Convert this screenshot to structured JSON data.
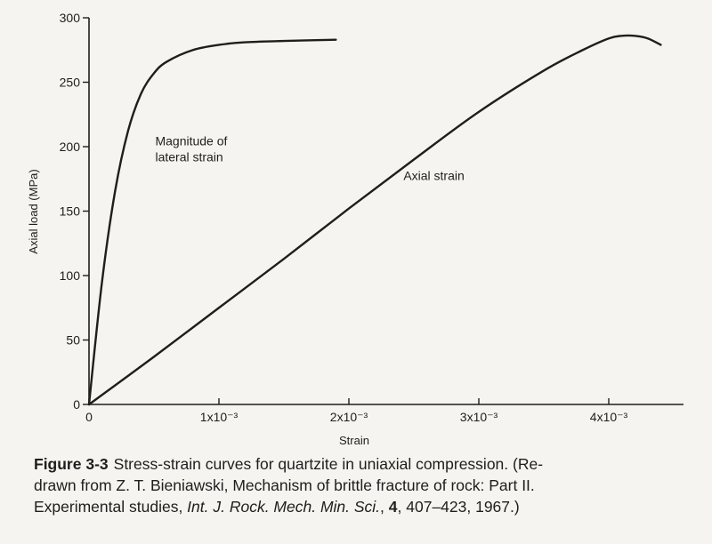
{
  "chart_data": {
    "type": "line",
    "xlabel": "Strain",
    "ylabel": "Axial load (MPa)",
    "xlim": [
      0,
      0.0045
    ],
    "ylim": [
      0,
      300
    ],
    "x_ticks": [
      {
        "value": 0,
        "label": "0"
      },
      {
        "value": 0.001,
        "label": "1x10⁻³"
      },
      {
        "value": 0.002,
        "label": "2x10⁻³"
      },
      {
        "value": 0.003,
        "label": "3x10⁻³"
      },
      {
        "value": 0.004,
        "label": "4x10⁻³"
      }
    ],
    "y_ticks": [
      0,
      50,
      100,
      150,
      200,
      250,
      300
    ],
    "grid": false,
    "series": [
      {
        "name": "Magnitude of lateral strain",
        "x": [
          0,
          0.0001,
          0.0002,
          0.0003,
          0.0004,
          0.0005,
          0.0006,
          0.0008,
          0.001,
          0.0012,
          0.0015,
          0.0019
        ],
        "y": [
          0,
          95,
          165,
          212,
          241,
          257,
          266,
          275,
          279,
          281,
          282,
          283
        ]
      },
      {
        "name": "Axial strain",
        "x": [
          0,
          0.0005,
          0.001,
          0.0015,
          0.002,
          0.0025,
          0.003,
          0.0035,
          0.0038,
          0.004,
          0.0041,
          0.0042,
          0.0043,
          0.0044
        ],
        "y": [
          0,
          37,
          75,
          113,
          152,
          190,
          227,
          259,
          275,
          284,
          286,
          286,
          284,
          279
        ]
      }
    ],
    "annotations": [
      {
        "lines": [
          "Magnitude of",
          "lateral strain"
        ],
        "x": 0.00051,
        "y": 201
      },
      {
        "lines": [
          "Axial strain"
        ],
        "x": 0.00242,
        "y": 174
      }
    ]
  },
  "caption": {
    "figure_label": "Figure 3-3",
    "line1": "Stress-strain curves for quartzite in uniaxial compression. (Re-",
    "line2": "drawn from Z. T. Bieniawski, Mechanism of brittle fracture of rock: Part II.",
    "line3_pre": "Experimental studies, ",
    "journal": "Int. J. Rock. Mech. Min. Sci.",
    "sep1": ", ",
    "volume": "4",
    "line3_post": ", 407–423, 1967.)"
  }
}
